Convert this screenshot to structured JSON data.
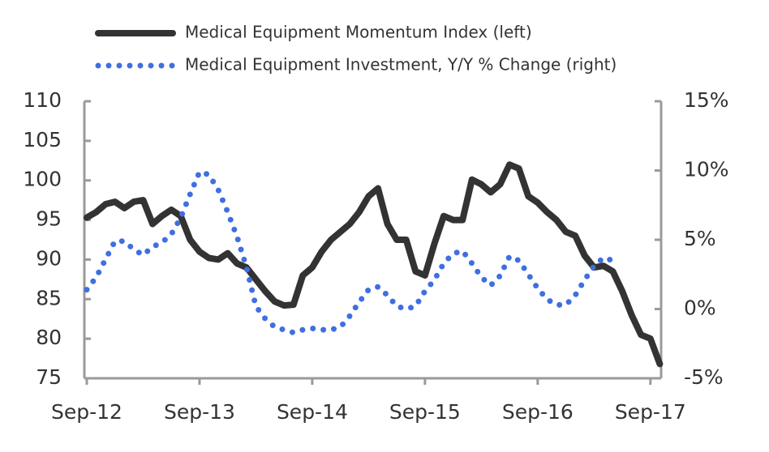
{
  "chart_data": {
    "type": "line",
    "categories": [
      "Sep-12",
      null,
      null,
      null,
      null,
      null,
      null,
      null,
      null,
      null,
      null,
      null,
      "Sep-13",
      null,
      null,
      null,
      null,
      null,
      null,
      null,
      null,
      null,
      null,
      null,
      "Sep-14",
      null,
      null,
      null,
      null,
      null,
      null,
      null,
      null,
      null,
      null,
      null,
      "Sep-15",
      null,
      null,
      null,
      null,
      null,
      null,
      null,
      null,
      null,
      null,
      null,
      "Sep-16",
      null,
      null,
      null,
      null,
      null,
      null,
      null,
      null,
      null,
      null,
      null,
      "Sep-17",
      null
    ],
    "series": [
      {
        "name": "Medical Equipment Momentum Index (left)",
        "color": "#333333",
        "style": "solid",
        "axis": "y",
        "values": [
          95.3,
          96,
          97,
          97.3,
          96.5,
          97.3,
          97.5,
          94.5,
          95.5,
          96.3,
          95.5,
          92.5,
          91,
          90.2,
          90,
          90.8,
          89.5,
          89,
          87.5,
          86,
          84.7,
          84.2,
          84.3,
          88,
          89,
          91,
          92.5,
          93.5,
          94.5,
          96,
          98,
          99,
          94.5,
          92.5,
          92.5,
          88.5,
          88,
          92,
          95.5,
          95,
          95,
          100.1,
          99.5,
          98.5,
          99.5,
          102,
          101.5,
          98,
          97.2,
          96,
          95,
          93.5,
          93,
          90.5,
          89,
          89.2,
          88.5,
          86,
          83,
          80.5,
          80,
          76.8
        ]
      },
      {
        "name": "Medical Equipment Investment, Y/Y % Change (right)",
        "color": "#3f6fe0",
        "style": "dotted",
        "axis": "y2",
        "values": [
          1.4,
          2.3,
          3.6,
          4.9,
          4.9,
          4.3,
          3.9,
          4.5,
          4.8,
          5.4,
          6.6,
          8.3,
          9.9,
          9.7,
          8.6,
          7.0,
          5.2,
          3.0,
          0.2,
          -0.7,
          -1.3,
          -1.5,
          -1.7,
          -1.5,
          -1.4,
          -1.5,
          -1.5,
          -1.3,
          -0.5,
          0.5,
          1.4,
          1.6,
          1,
          0.2,
          0,
          0.2,
          1.3,
          2.1,
          3.3,
          4,
          4.2,
          3.3,
          2.3,
          1.7,
          2.4,
          3.8,
          3.5,
          2.5,
          1.5,
          0.7,
          0.3,
          0.3,
          1,
          2.1,
          3.1,
          3.7,
          3.5,
          null,
          null,
          null,
          null,
          null
        ]
      }
    ],
    "ylim": [
      75,
      110
    ],
    "yticks": [
      75,
      80,
      85,
      90,
      95,
      100,
      105,
      110
    ],
    "y2lim": [
      -5,
      15
    ],
    "y2ticks": [
      {
        "value": -5,
        "label": "-5%"
      },
      {
        "value": 0,
        "label": "0%"
      },
      {
        "value": 5,
        "label": "5%"
      },
      {
        "value": 10,
        "label": "10%"
      },
      {
        "value": 15,
        "label": "15%"
      }
    ],
    "legend": "top"
  }
}
